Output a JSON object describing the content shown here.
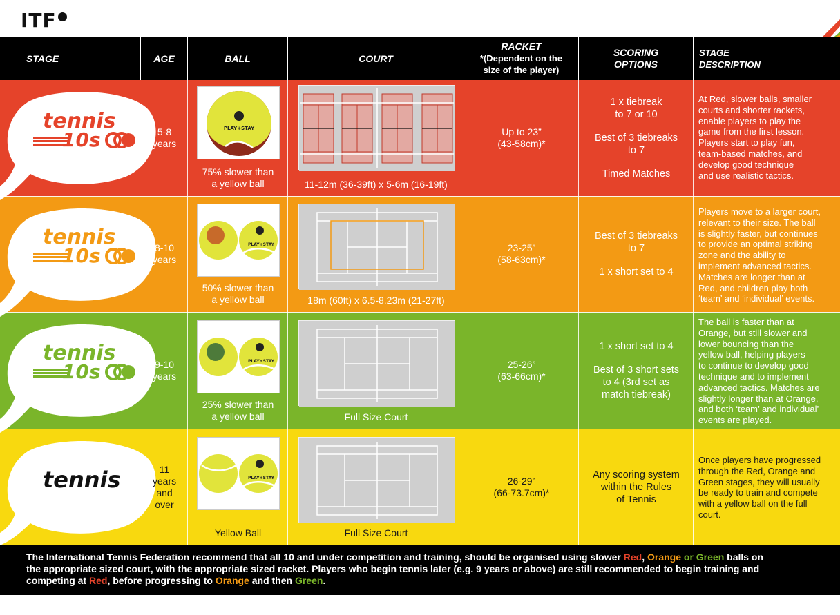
{
  "logo": {
    "text": "ITF"
  },
  "header": {
    "stage": "STAGE",
    "age": "AGE",
    "ball": "BALL",
    "court": "COURT",
    "racket_title": "RACKET",
    "racket_sub1": "*(Dependent on the",
    "racket_sub2": "size of the player)",
    "scoring1": "SCORING",
    "scoring2": "OPTIONS",
    "desc1": "STAGE",
    "desc2": "DESCRIPTION"
  },
  "rows": [
    {
      "stage_word": "tennis",
      "stage_num": "10s",
      "age1": "5-8",
      "age2": "years",
      "ball_cap1": "75% slower than",
      "ball_cap2": "a yellow ball",
      "court_cap": "11-12m (36-39ft) x 5-6m (16-19ft)",
      "racket1": "Up to 23”",
      "racket2": "(43-58cm)*",
      "scoring": [
        "1 x tiebreak",
        "to 7 or 10",
        "",
        "Best of 3 tiebreaks",
        "to 7",
        "",
        "Timed Matches"
      ],
      "desc": [
        "At Red, slower balls, smaller",
        "courts and shorter rackets,",
        "enable players to play the",
        "game from the first lesson.",
        "Players start to play fun,",
        "team-based matches, and",
        "develop good technique",
        "and use realistic tactics."
      ]
    },
    {
      "stage_word": "tennis",
      "stage_num": "10s",
      "age1": "8-10",
      "age2": "years",
      "ball_cap1": "50% slower than",
      "ball_cap2": "a yellow ball",
      "court_cap": "18m (60ft) x 6.5-8.23m (21-27ft)",
      "racket1": "23-25”",
      "racket2": "(58-63cm)*",
      "scoring": [
        "Best of 3 tiebreaks",
        "to 7",
        "",
        "1 x short set to 4"
      ],
      "desc": [
        "Players move to a larger court,",
        "relevant to their size. The ball",
        "is slightly faster, but continues",
        "to provide an optimal striking",
        "zone and the ability to",
        "implement advanced tactics.",
        "Matches are longer than at",
        "Red, and children play both",
        "‘team’ and ‘individual’ events."
      ]
    },
    {
      "stage_word": "tennis",
      "stage_num": "10s",
      "age1": "9-10",
      "age2": "years",
      "ball_cap1": "25% slower than",
      "ball_cap2": "a yellow ball",
      "court_cap": "Full Size Court",
      "racket1": "25-26”",
      "racket2": "(63-66cm)*",
      "scoring": [
        "1 x short set to 4",
        "",
        "Best of 3 short sets",
        "to 4 (3rd set as",
        "match tiebreak)"
      ],
      "desc": [
        "The ball is faster than at",
        "Orange, but still slower and",
        "lower bouncing than the",
        "yellow ball, helping players",
        "to continue to develop good",
        "technique and to implement",
        "advanced tactics. Matches are",
        "slightly longer than at Orange,",
        "and both ‘team’ and individual’",
        "events are played."
      ]
    },
    {
      "stage_word": "tennis",
      "age1": "11",
      "age2": "years",
      "age3": "and",
      "age4": "over",
      "ball_cap1": "Yellow Ball",
      "court_cap": "Full Size Court",
      "racket1": "26-29”",
      "racket2": "(66-73.7cm)*",
      "scoring": [
        "Any scoring system",
        "within the Rules",
        "of Tennis"
      ],
      "desc": [
        "Once players have progressed",
        "through the Red, Orange and",
        "Green stages, they will usually",
        "be ready to train and compete",
        "with a yellow ball on the full",
        "court."
      ]
    }
  ],
  "ball_label": "PLAY+STAY",
  "footer": {
    "l1a": "The International Tennis Federation recommend that all 10 and under competition and training, should be organised using slower ",
    "red": "Red",
    "comma": ", ",
    "orange": "Orange",
    "or": " or ",
    "green": "Green",
    "l1b": " balls on",
    "l2": "the appropriate sized court, with the appropriate sized racket. Players who begin tennis later (e.g. 9 years or above) are still recommended to begin training and",
    "l3a": "competing at ",
    "l3b": ", before progressing to ",
    "l3c": " and then ",
    "l3d": "."
  },
  "colors": {
    "red": "#e5432a",
    "orange": "#f39a14",
    "green": "#7ab52a",
    "yellow": "#f8d90f"
  }
}
